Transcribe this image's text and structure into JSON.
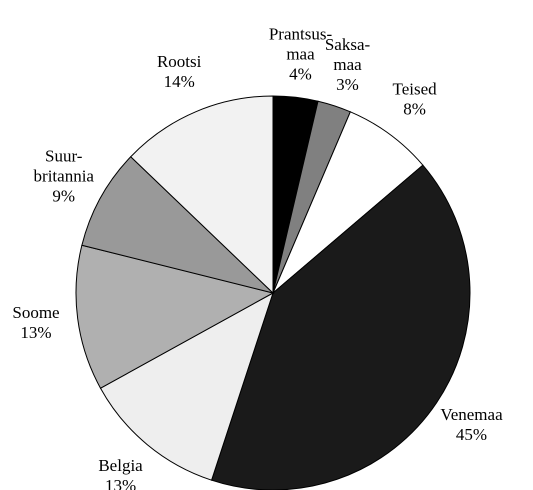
{
  "chart_data": {
    "type": "pie",
    "categories": [
      "Prantsus-maa",
      "Saksa-maa",
      "Teised",
      "Venemaa",
      "Belgia",
      "Soome",
      "Suur-britannia",
      "Rootsi"
    ],
    "values": [
      4,
      3,
      8,
      45,
      13,
      13,
      9,
      14
    ],
    "value_labels": [
      "4%",
      "3%",
      "8%",
      "45%",
      "13%",
      "13%",
      "9%",
      "14%"
    ],
    "colors": [
      "#000000",
      "#808080",
      "#ffffff",
      "#1a1a1a",
      "#eeeeee",
      "#b0b0b0",
      "#999999",
      "#f2f2f2"
    ]
  }
}
